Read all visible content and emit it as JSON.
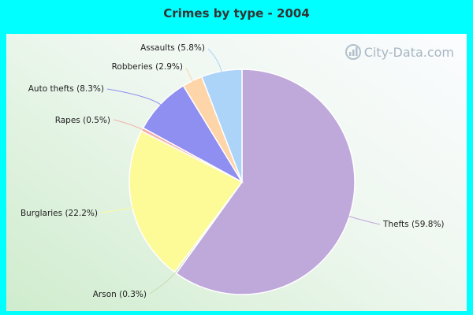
{
  "chart_data": {
    "type": "pie",
    "title": "Crimes by type - 2004",
    "slices": [
      {
        "label": "Thefts (59.8%)",
        "value": 59.8,
        "color": "#bfa8da"
      },
      {
        "label": "Arson (0.3%)",
        "value": 0.3,
        "color": "#c7dcae"
      },
      {
        "label": "Burglaries (22.2%)",
        "value": 22.2,
        "color": "#fdfa98"
      },
      {
        "label": "Rapes (0.5%)",
        "value": 0.5,
        "color": "#f5b0a9"
      },
      {
        "label": "Auto thefts (8.3%)",
        "value": 8.3,
        "color": "#8f8ef1"
      },
      {
        "label": "Robberies (2.9%)",
        "value": 2.9,
        "color": "#fed5a8"
      },
      {
        "label": "Assaults (5.8%)",
        "value": 5.8,
        "color": "#acd4f9"
      }
    ]
  },
  "watermark": {
    "text": "City-Data.com"
  }
}
